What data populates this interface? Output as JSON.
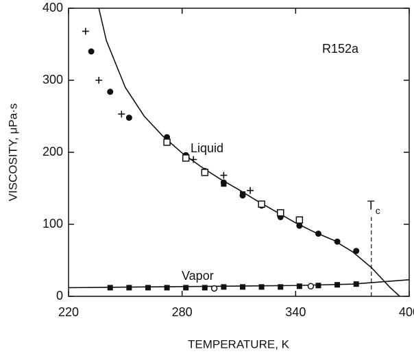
{
  "chart_data": {
    "type": "scatter",
    "xlabel": "TEMPERATURE, K",
    "ylabel": "VISCOSITY, μPa·s",
    "xlim": [
      220,
      400
    ],
    "xticks": [
      220,
      280,
      340,
      400
    ],
    "ylim": [
      0,
      400
    ],
    "yticks": [
      0,
      100,
      200,
      300,
      400
    ],
    "annotations": [
      "R152a",
      "Liquid",
      "Vapor"
    ],
    "critical_temperature": {
      "value": 380,
      "label": "T",
      "subscript": "c"
    },
    "series": [
      {
        "marker": "line",
        "color": "#111",
        "x": [
          236,
          240,
          250,
          260,
          270,
          280,
          290,
          300,
          310,
          320,
          330,
          340,
          350,
          360,
          370,
          380,
          390,
          395
        ],
        "values": [
          400,
          355,
          290,
          250,
          222,
          199,
          180,
          163,
          148,
          132,
          117,
          102,
          89,
          78,
          62,
          40,
          12,
          0
        ]
      },
      {
        "marker": "line",
        "color": "#111",
        "x": [
          220,
          260,
          300,
          340,
          370,
          400
        ],
        "values": [
          12,
          13,
          14,
          15,
          17,
          23
        ]
      },
      {
        "marker": "circle",
        "color": "#111",
        "x": [
          232,
          242,
          252,
          272,
          282,
          292,
          302,
          312,
          322,
          332,
          342,
          352,
          362,
          372
        ],
        "values": [
          340,
          284,
          248,
          221,
          196,
          174,
          158,
          140,
          126,
          110,
          98,
          87,
          76,
          63
        ]
      },
      {
        "marker": "square-open",
        "color": "#111",
        "x": [
          272,
          282,
          292,
          322,
          332,
          342
        ],
        "values": [
          214,
          192,
          172,
          128,
          116,
          106
        ]
      },
      {
        "marker": "square",
        "color": "#111",
        "x": [
          302,
          312,
          242,
          252,
          262,
          272,
          282,
          292,
          302,
          312,
          322,
          332,
          342,
          352,
          362,
          372
        ],
        "values": [
          156,
          142,
          12,
          12,
          12,
          12,
          12,
          12,
          13,
          13,
          13,
          13,
          14,
          15,
          16,
          17
        ]
      },
      {
        "marker": "plus",
        "color": "#111",
        "x": [
          229,
          236,
          248,
          286,
          302,
          316
        ],
        "values": [
          368,
          300,
          253,
          190,
          168,
          147
        ]
      },
      {
        "marker": "circle-open",
        "color": "#111",
        "x": [
          297,
          348
        ],
        "values": [
          11,
          14
        ]
      }
    ]
  }
}
